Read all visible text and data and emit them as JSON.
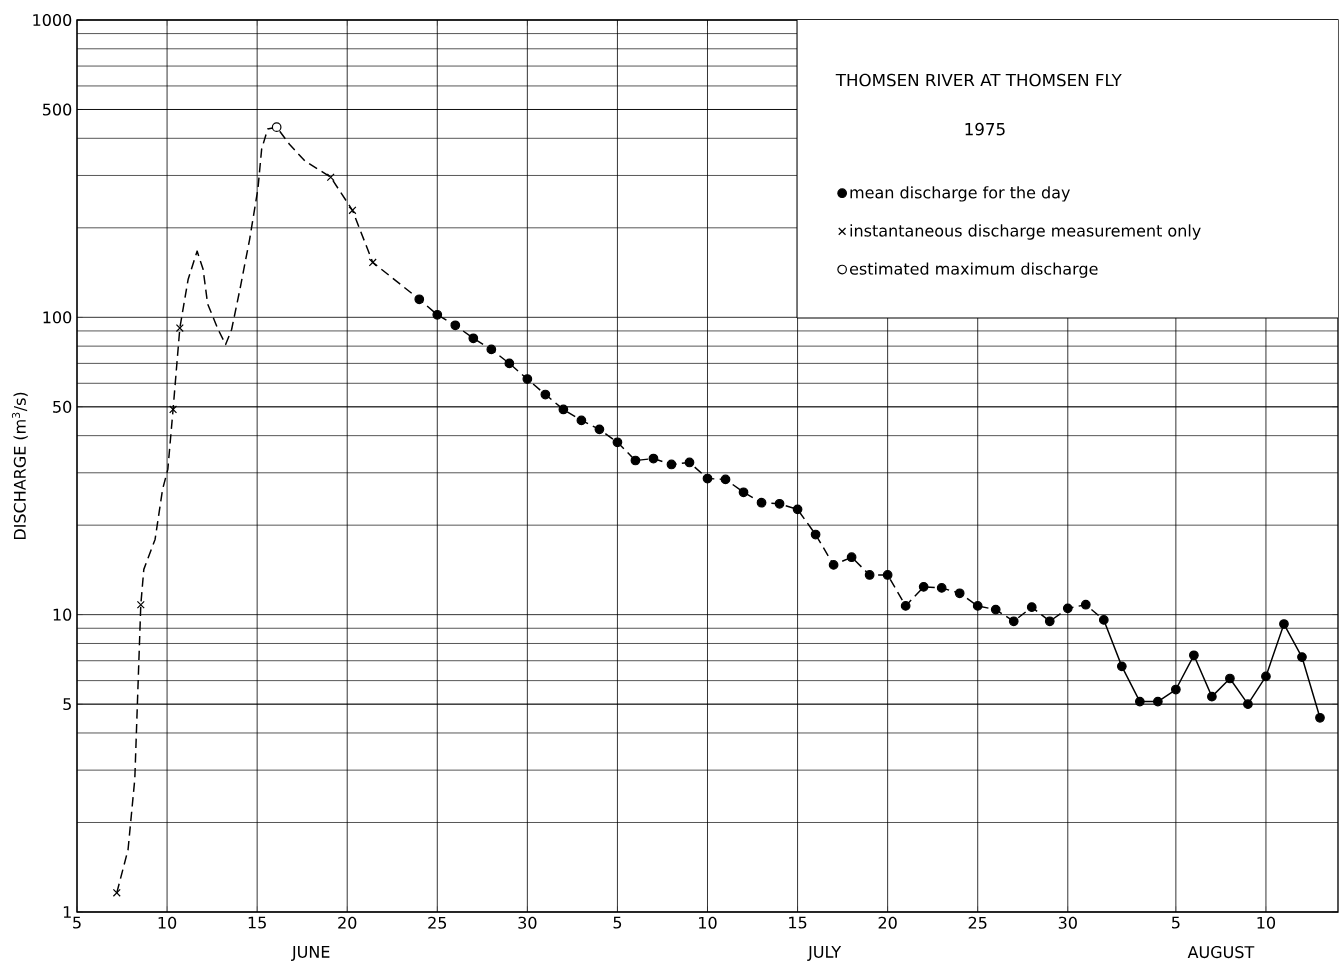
{
  "chart_data": {
    "type": "line",
    "title": "THOMSEN RIVER AT THOMSEN FLY",
    "subtitle": "1975",
    "ylabel": "DISCHARGE (m$^{3}$/s)",
    "log": "y",
    "grid": true,
    "legend": "top right",
    "xlim": [
      "1975-06-05",
      "1975-08-14"
    ],
    "ylim": [
      1,
      1000
    ],
    "yticks": [
      1,
      5,
      10,
      50,
      100,
      500,
      1000
    ],
    "xticks": [
      {
        "value": "1975-06-05",
        "label": "5"
      },
      {
        "value": "1975-06-10",
        "label": "10"
      },
      {
        "value": "1975-06-15",
        "label": "15"
      },
      {
        "value": "1975-06-20",
        "label": "20"
      },
      {
        "value": "1975-06-25",
        "label": "25"
      },
      {
        "value": "1975-06-30",
        "label": "30"
      },
      {
        "value": "1975-07-05",
        "label": "5"
      },
      {
        "value": "1975-07-10",
        "label": "10"
      },
      {
        "value": "1975-07-15",
        "label": "15"
      },
      {
        "value": "1975-07-20",
        "label": "20"
      },
      {
        "value": "1975-07-25",
        "label": "25"
      },
      {
        "value": "1975-07-30",
        "label": "30"
      },
      {
        "value": "1975-08-05",
        "label": "5"
      },
      {
        "value": "1975-08-10",
        "label": "10"
      }
    ],
    "annotations": [
      "JUNE",
      "JULY",
      "AUGUST"
    ],
    "series": [
      {
        "line_style": "dashed",
        "marker": "none",
        "color": "#000000",
        "x": [
          "1975-06-07T05:00",
          "1975-06-07T20:00",
          "1975-06-08T05:00",
          "1975-06-08T13:00",
          "1975-06-08T17:00",
          "1975-06-09T08:00",
          "1975-06-09T18:00",
          "1975-06-10T01:00",
          "1975-06-10T08:00",
          "1975-06-10T17:00",
          "1975-06-11T04:00",
          "1975-06-11T16:00",
          "1975-06-12T00:00",
          "1975-06-12T06:00",
          "1975-06-12T20:00",
          "1975-06-13T06:00",
          "1975-06-13T14:00",
          "1975-06-14T01:00",
          "1975-06-14T14:00",
          "1975-06-15T01:00",
          "1975-06-15T06:00",
          "1975-06-15T14:00",
          "1975-06-16T02:00",
          "1975-06-16T19:00",
          "1975-06-17T16:00",
          "1975-06-18T09:00",
          "1975-06-19T02:00",
          "1975-06-20T07:00",
          "1975-06-21T10:00",
          "1975-06-24",
          "1975-06-25",
          "1975-06-26",
          "1975-06-27",
          "1975-06-28",
          "1975-06-29",
          "1975-06-30",
          "1975-07-01",
          "1975-07-02",
          "1975-07-03",
          "1975-07-04",
          "1975-07-05",
          "1975-07-06",
          "1975-07-07",
          "1975-07-08",
          "1975-07-09",
          "1975-07-10",
          "1975-07-11",
          "1975-07-12",
          "1975-07-13",
          "1975-07-14",
          "1975-07-15",
          "1975-07-16",
          "1975-07-17",
          "1975-07-18",
          "1975-07-19",
          "1975-07-20",
          "1975-07-21",
          "1975-07-22",
          "1975-07-23",
          "1975-07-24",
          "1975-07-25",
          "1975-07-26",
          "1975-07-27",
          "1975-07-28",
          "1975-07-29",
          "1975-07-30",
          "1975-07-31",
          "1975-08-01"
        ],
        "values": [
          1.16,
          1.62,
          2.8,
          10.8,
          14.2,
          17.9,
          26.4,
          30.8,
          49,
          92,
          134,
          167,
          145,
          111,
          91,
          81,
          91,
          124,
          183,
          270,
          368,
          430,
          436,
          382,
          335,
          315,
          296,
          229,
          153,
          115,
          102,
          94,
          85,
          78,
          70,
          62,
          55,
          49,
          45,
          42,
          38,
          33,
          33.5,
          32,
          32.5,
          28.7,
          28.5,
          25.8,
          23.8,
          23.6,
          22.6,
          18.6,
          14.7,
          15.6,
          13.6,
          13.6,
          10.7,
          12.4,
          12.3,
          11.8,
          10.7,
          10.4,
          9.5,
          10.6,
          9.5,
          10.5,
          10.8,
          9.6
        ]
      },
      {
        "line_style": "solid",
        "marker": "none",
        "color": "#000000",
        "x": [
          "1975-08-01",
          "1975-08-02",
          "1975-08-03",
          "1975-08-04",
          "1975-08-05",
          "1975-08-06",
          "1975-08-07",
          "1975-08-08",
          "1975-08-09",
          "1975-08-10",
          "1975-08-11",
          "1975-08-12",
          "1975-08-13"
        ],
        "values": [
          9.6,
          6.7,
          5.1,
          5.1,
          5.6,
          7.3,
          5.3,
          6.1,
          5.0,
          6.2,
          9.3,
          7.2,
          4.5
        ]
      },
      {
        "type": "scatter",
        "name": "mean discharge for the day",
        "marker": "circle",
        "color": "#000000",
        "x": [
          "1975-06-24",
          "1975-06-25",
          "1975-06-26",
          "1975-06-27",
          "1975-06-28",
          "1975-06-29",
          "1975-06-30",
          "1975-07-01",
          "1975-07-02",
          "1975-07-03",
          "1975-07-04",
          "1975-07-05",
          "1975-07-06",
          "1975-07-07",
          "1975-07-08",
          "1975-07-09",
          "1975-07-10",
          "1975-07-11",
          "1975-07-12",
          "1975-07-13",
          "1975-07-14",
          "1975-07-15",
          "1975-07-16",
          "1975-07-17",
          "1975-07-18",
          "1975-07-19",
          "1975-07-20",
          "1975-07-21",
          "1975-07-22",
          "1975-07-23",
          "1975-07-24",
          "1975-07-25",
          "1975-07-26",
          "1975-07-27",
          "1975-07-28",
          "1975-07-29",
          "1975-07-30",
          "1975-07-31",
          "1975-08-01",
          "1975-08-02",
          "1975-08-03",
          "1975-08-04",
          "1975-08-05",
          "1975-08-06",
          "1975-08-07",
          "1975-08-08",
          "1975-08-09",
          "1975-08-10",
          "1975-08-11",
          "1975-08-12",
          "1975-08-13"
        ],
        "values": [
          115,
          102,
          94,
          85,
          78,
          70,
          62,
          55,
          49,
          45,
          42,
          38,
          33,
          33.5,
          32,
          32.5,
          28.7,
          28.5,
          25.8,
          23.8,
          23.6,
          22.6,
          18.6,
          14.7,
          15.6,
          13.6,
          13.6,
          10.7,
          12.4,
          12.3,
          11.8,
          10.7,
          10.4,
          9.5,
          10.6,
          9.5,
          10.5,
          10.8,
          9.6,
          6.7,
          5.1,
          5.1,
          5.6,
          7.3,
          5.3,
          6.1,
          5.0,
          6.2,
          9.3,
          7.2,
          4.5
        ]
      },
      {
        "type": "scatter",
        "name": "instantaneous discharge measurement only",
        "marker": "cross",
        "color": "#000000",
        "x": [
          "1975-06-07T05:00",
          "1975-06-08T13:00",
          "1975-06-10T08:00",
          "1975-06-10T17:00",
          "1975-06-19T02:00",
          "1975-06-20T07:00",
          "1975-06-21T10:00"
        ],
        "values": [
          1.16,
          10.8,
          49,
          92,
          296,
          229,
          153
        ]
      },
      {
        "type": "scatter",
        "name": "estimated maximum discharge",
        "marker": "circle",
        "color": "#ffffff",
        "x": [
          "1975-06-16T02:00"
        ],
        "values": [
          436
        ]
      }
    ]
  }
}
